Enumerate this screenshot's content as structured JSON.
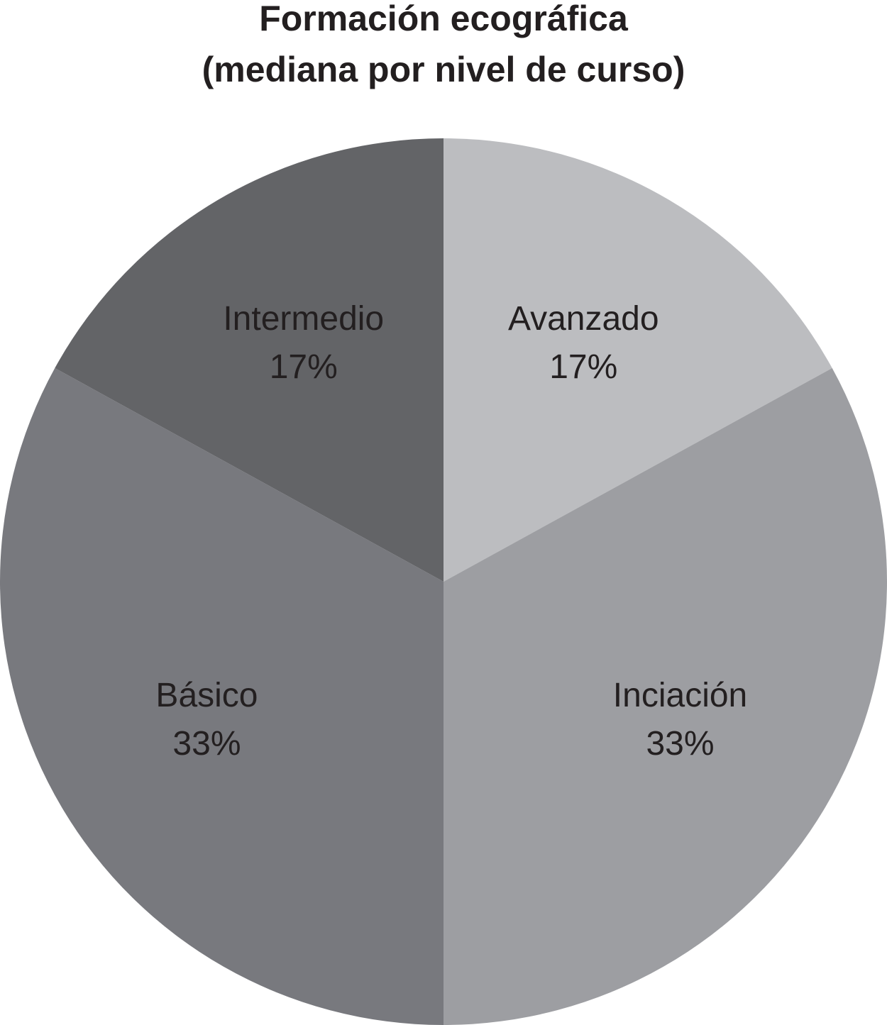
{
  "chart_data": {
    "type": "pie",
    "title": "Formación ecográfica",
    "subtitle": "(mediana por nivel de curso)",
    "categories": [
      "Avanzado",
      "Inciación",
      "Básico",
      "Intermedio"
    ],
    "values": [
      17,
      33,
      33,
      17
    ],
    "value_labels": [
      "17%",
      "33%",
      "33%",
      "17%"
    ],
    "colors": [
      "#bcbdc0",
      "#9d9ea2",
      "#78797e",
      "#636467"
    ]
  }
}
